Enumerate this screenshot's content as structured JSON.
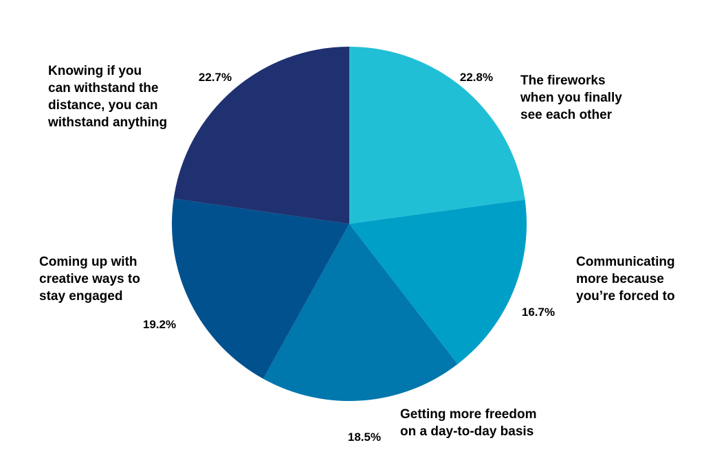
{
  "chart_data": {
    "type": "pie",
    "title": "",
    "start": "12 o'clock",
    "direction": "clockwise",
    "slices": [
      {
        "label_lines": [
          "The fireworks",
          "when you finally",
          "see each other"
        ],
        "value": 22.8,
        "display": "22.8%",
        "color": "#21bfd6"
      },
      {
        "label_lines": [
          "Communicating",
          "more because",
          "you’re forced to"
        ],
        "value": 16.7,
        "display": "16.7%",
        "color": "#009fc7"
      },
      {
        "label_lines": [
          "Getting more freedom",
          "on a day-to-day basis"
        ],
        "value": 18.5,
        "display": "18.5%",
        "color": "#0077ad"
      },
      {
        "label_lines": [
          "Coming up with",
          "creative ways to",
          "stay engaged"
        ],
        "value": 19.2,
        "display": "19.2%",
        "color": "#02518f"
      },
      {
        "label_lines": [
          "Knowing if you",
          "can withstand the",
          "distance, you can",
          "withstand anything"
        ],
        "value": 22.7,
        "display": "22.7%",
        "color": "#1f3170"
      }
    ]
  }
}
